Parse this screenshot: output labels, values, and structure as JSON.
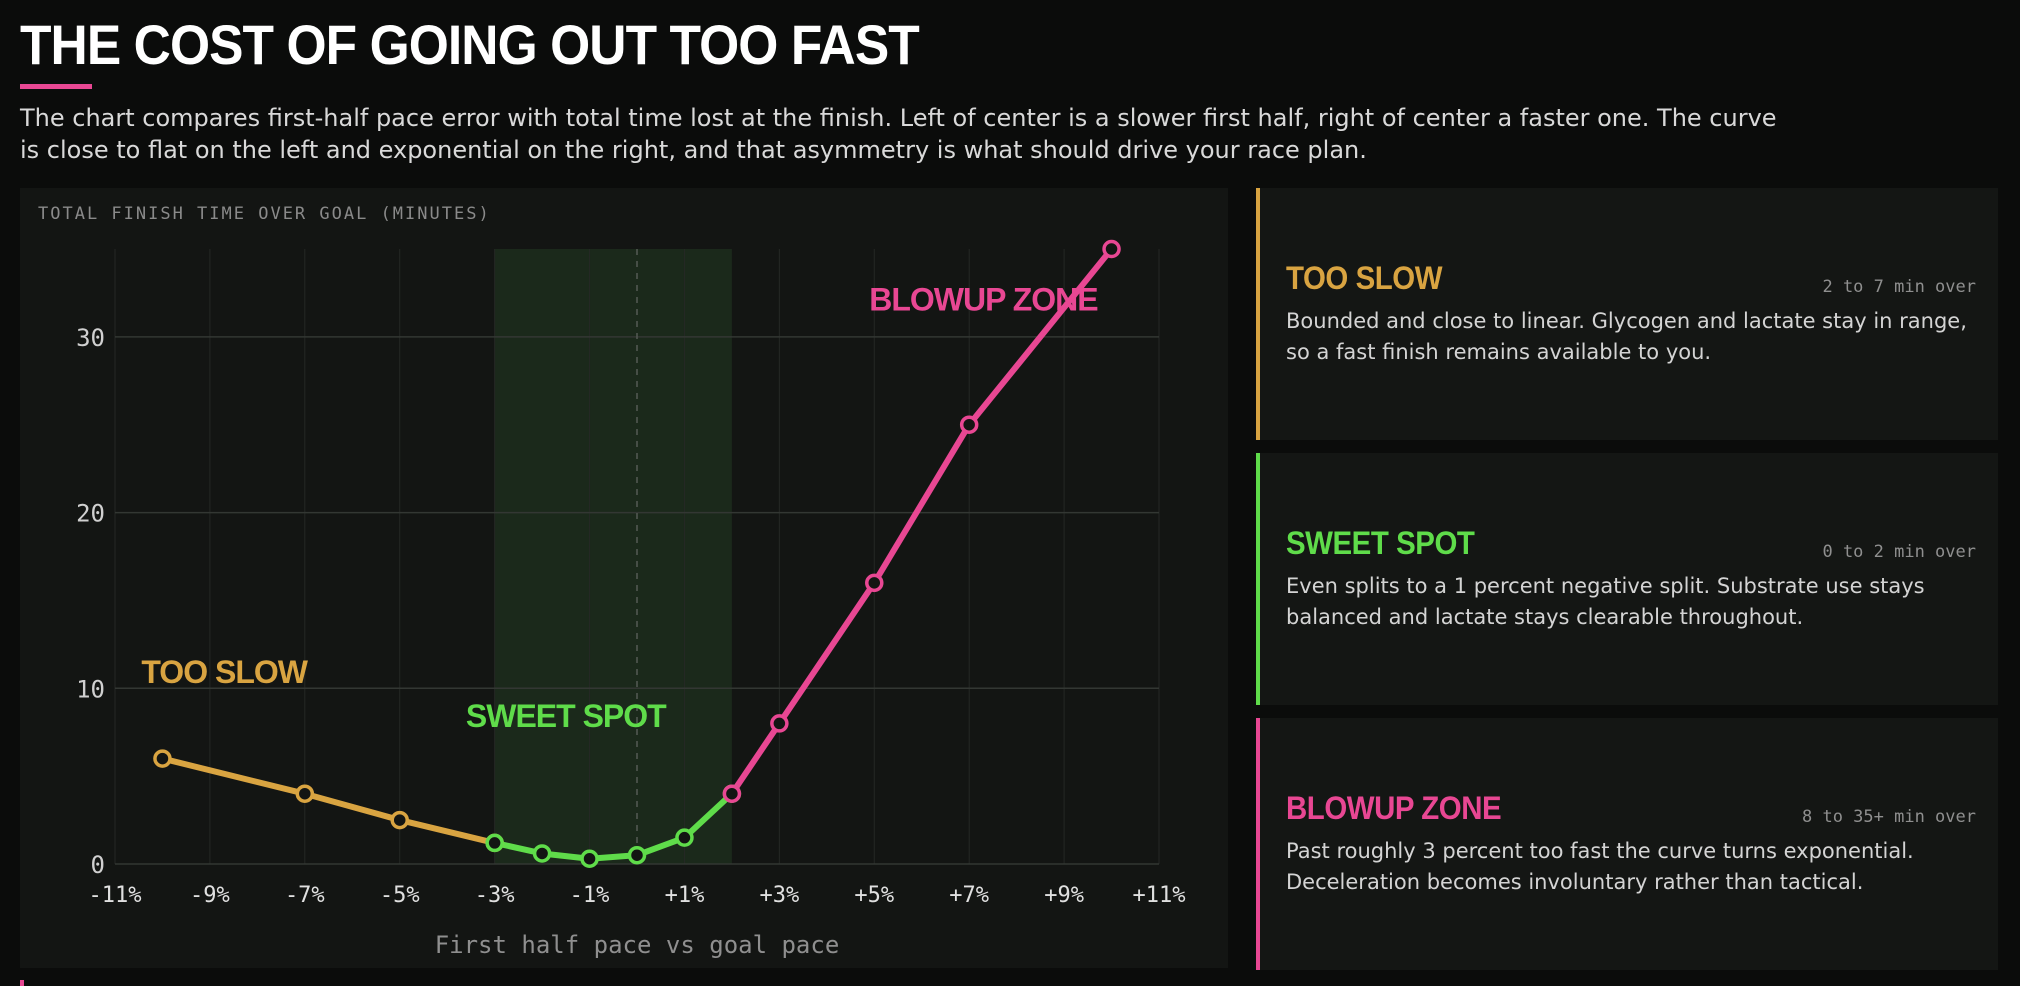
{
  "header": {
    "title": "THE COST OF GOING OUT TOO FAST",
    "intro": "The chart compares first-half pace error with total time lost at the finish. Left of center is a slower first half, right of center a faster one. The curve is close to flat on the left and exponential on the right, and that asymmetry is what should drive your race plan."
  },
  "colors": {
    "background": "#0b0c0b",
    "panel": "#131513",
    "too_slow": "#d9a441",
    "sweet_spot": "#5fdc4a",
    "blowup": "#e84793",
    "accent": "#e84793"
  },
  "chart_data": {
    "type": "line",
    "title": "",
    "ylabel": "TOTAL FINISH TIME OVER GOAL (MINUTES)",
    "xlabel": "First half pace vs goal pace",
    "xlim": [
      -11,
      11
    ],
    "ylim": [
      0,
      35
    ],
    "x_ticks": [
      -11,
      -9,
      -7,
      -5,
      -3,
      -1,
      1,
      3,
      5,
      7,
      9,
      11
    ],
    "x_tick_labels": [
      "-11%",
      "-9%",
      "-7%",
      "-5%",
      "-3%",
      "-1%",
      "+1%",
      "+3%",
      "+5%",
      "+7%",
      "+9%",
      "+11%"
    ],
    "y_ticks": [
      0,
      10,
      20,
      30
    ],
    "y_tick_labels": [
      "0",
      "10",
      "20",
      "30"
    ],
    "grid": true,
    "highlight_band": {
      "x_from": -3,
      "x_to": 2
    },
    "reference_line_x": 0,
    "series": [
      {
        "name": "TOO SLOW",
        "color": "#d9a441",
        "x": [
          -10,
          -7,
          -5,
          -3
        ],
        "y": [
          6,
          4,
          2.5,
          1.2
        ]
      },
      {
        "name": "SWEET SPOT",
        "color": "#5fdc4a",
        "x": [
          -3,
          -2,
          -1,
          0,
          1,
          2
        ],
        "y": [
          1.2,
          0.6,
          0.3,
          0.5,
          1.5,
          4
        ]
      },
      {
        "name": "BLOWUP ZONE",
        "color": "#e84793",
        "x": [
          2,
          3,
          5,
          7,
          10
        ],
        "y": [
          4,
          8,
          16,
          25,
          35
        ]
      }
    ],
    "annotations": [
      {
        "text": "TOO SLOW",
        "x": -8.7,
        "y": 10.3,
        "color": "#d9a441"
      },
      {
        "text": "SWEET SPOT",
        "x": -1.5,
        "y": 7.8,
        "color": "#5fdc4a"
      },
      {
        "text": "BLOWUP ZONE",
        "x": 7.3,
        "y": 31.5,
        "color": "#e84793"
      }
    ]
  },
  "zones": [
    {
      "title": "TOO SLOW",
      "range": "2 to 7 min over",
      "description": "Bounded and close to linear. Glycogen and lactate stay in range, so a fast finish remains available to you.",
      "color": "#d9a441"
    },
    {
      "title": "SWEET SPOT",
      "range": "0 to 2 min over",
      "description": "Even splits to a 1 percent negative split. Substrate use stays balanced and lactate stays clearable throughout.",
      "color": "#5fdc4a"
    },
    {
      "title": "BLOWUP ZONE",
      "range": "8 to 35+ min over",
      "description": "Past roughly 3 percent too fast the curve turns exponential. Deceleration becomes involuntary rather than tactical.",
      "color": "#e84793"
    }
  ]
}
